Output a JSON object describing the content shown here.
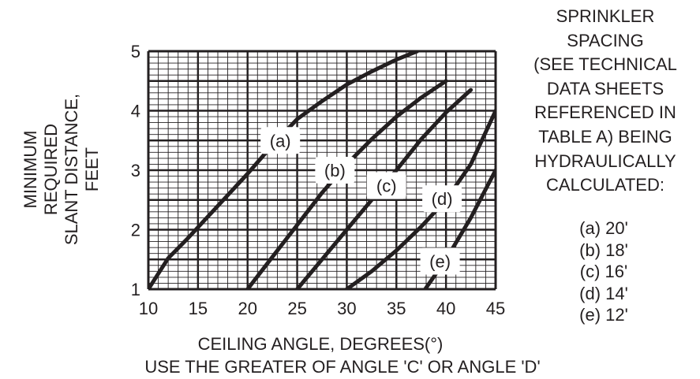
{
  "chart_data": {
    "type": "line",
    "xlabel": "CEILING ANGLE, DEGREES(°)",
    "subtitle": "USE THE GREATER OF ANGLE 'C' OR ANGLE 'D'",
    "ylabel": [
      "MINIMUM",
      "REQUIRED",
      "SLANT DISTANCE,",
      "FEET"
    ],
    "xlim": [
      10,
      45
    ],
    "ylim": [
      1,
      5
    ],
    "x_ticks": [
      "10",
      "15",
      "20",
      "25",
      "30",
      "35",
      "40",
      "45"
    ],
    "y_ticks": [
      "1",
      "2",
      "3",
      "4",
      "5"
    ],
    "grid": true,
    "series": [
      {
        "name": "(a)",
        "x": [
          10,
          12,
          14,
          16,
          18,
          20,
          22.5,
          25,
          27.5,
          30,
          32.5,
          35,
          37.1
        ],
        "y": [
          1.0,
          1.52,
          1.86,
          2.22,
          2.58,
          2.94,
          3.42,
          3.86,
          4.16,
          4.44,
          4.66,
          4.86,
          5.0
        ],
        "label_at": [
          23.3,
          3.5
        ]
      },
      {
        "name": "(b)",
        "x": [
          20,
          22.5,
          25,
          27.5,
          30,
          32.5,
          35,
          37.5,
          40
        ],
        "y": [
          1.0,
          1.54,
          2.08,
          2.62,
          3.1,
          3.52,
          3.9,
          4.22,
          4.5
        ],
        "label_at": [
          28.8,
          3.0
        ]
      },
      {
        "name": "(c)",
        "x": [
          25,
          27.5,
          30,
          32.5,
          35,
          37.5,
          40,
          42.5
        ],
        "y": [
          1.0,
          1.5,
          2.0,
          2.5,
          3.0,
          3.52,
          3.97,
          4.35
        ],
        "label_at": [
          34.0,
          2.74
        ]
      },
      {
        "name": "(d)",
        "x": [
          30,
          32.5,
          35,
          37.5,
          40,
          42.5,
          45
        ],
        "y": [
          1.0,
          1.3,
          1.65,
          2.05,
          2.5,
          3.1,
          4.0
        ],
        "label_at": [
          39.6,
          2.52
        ]
      },
      {
        "name": "(e)",
        "x": [
          37.9,
          40,
          42.5,
          45
        ],
        "y": [
          1.0,
          1.5,
          2.2,
          3.0
        ],
        "label_at": [
          39.4,
          1.47
        ]
      }
    ]
  },
  "legend": {
    "title": [
      "SPRINKLER",
      "SPACING",
      "(SEE TECHNICAL",
      "DATA SHEETS",
      "REFERENCED IN",
      "TABLE A) BEING",
      "HYDRAULICALLY",
      "CALCULATED:"
    ],
    "items": [
      "(a) 20'",
      "(b) 18'",
      "(c) 16'",
      "(d) 14'",
      "(e) 12'"
    ]
  }
}
